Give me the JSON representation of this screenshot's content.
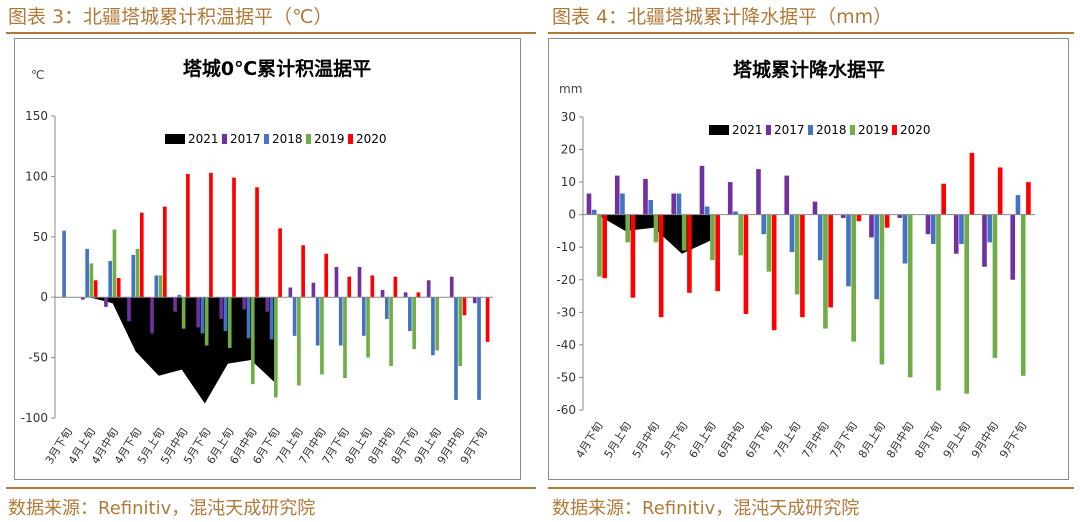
{
  "left_panel": {
    "caption": "图表 3：北疆塔城累计积温据平（℃）",
    "source": "数据来源：Refinitiv，混沌天成研究院"
  },
  "right_panel": {
    "caption": "图表 4：北疆塔城累计降水据平（mm）",
    "source": "数据来源：Refinitiv，混沌天成研究院"
  },
  "colors": {
    "2021": "#000000",
    "2017": "#7030a0",
    "2018": "#4472c4",
    "2019": "#70ad47",
    "2020": "#ff0000",
    "caption": "#b07a38"
  },
  "chart_data": [
    {
      "type": "bar",
      "title": "塔城0℃累计积温据平",
      "ylabel": "℃",
      "ylim": [
        -100,
        150
      ],
      "yticks": [
        -100,
        -50,
        0,
        50,
        100,
        150
      ],
      "legend_position": "top-center",
      "grid": false,
      "categories": [
        "3月下旬",
        "4月上旬",
        "4月中旬",
        "4月下旬",
        "5月上旬",
        "5月中旬",
        "5月下旬",
        "6月上旬",
        "6月中旬",
        "6月下旬",
        "7月上旬",
        "7月中旬",
        "7月下旬",
        "8月上旬",
        "8月中旬",
        "8月下旬",
        "9月上旬",
        "9月中旬",
        "9月下旬"
      ],
      "series": [
        {
          "name": "2021",
          "type": "area",
          "values": [
            0,
            0,
            -5,
            -45,
            -65,
            -60,
            -88,
            -55,
            -52,
            -70,
            null,
            null,
            null,
            null,
            null,
            null,
            null,
            null,
            null
          ]
        },
        {
          "name": "2017",
          "values": [
            0,
            -2,
            -8,
            -20,
            -30,
            -12,
            -25,
            -18,
            -10,
            -12,
            8,
            12,
            25,
            25,
            6,
            4,
            14,
            17,
            -5
          ]
        },
        {
          "name": "2018",
          "values": [
            55,
            40,
            30,
            35,
            18,
            2,
            -30,
            -28,
            -34,
            -35,
            -32,
            -40,
            -40,
            -32,
            -18,
            -28,
            -48,
            -85,
            -85
          ]
        },
        {
          "name": "2019",
          "values": [
            0,
            28,
            56,
            40,
            18,
            -26,
            -40,
            -42,
            -72,
            -83,
            -73,
            -64,
            -67,
            -50,
            -57,
            -43,
            -44,
            -57,
            0
          ]
        },
        {
          "name": "2020",
          "values": [
            0,
            14,
            16,
            70,
            75,
            102,
            103,
            99,
            91,
            57,
            43,
            36,
            17,
            18,
            17,
            4,
            0,
            -15,
            -37
          ]
        }
      ]
    },
    {
      "type": "bar",
      "title": "塔城累计降水据平",
      "ylabel": "mm",
      "ylim": [
        -60,
        30
      ],
      "yticks": [
        -60,
        -50,
        -40,
        -30,
        -20,
        -10,
        0,
        10,
        20,
        30
      ],
      "legend_position": "top-center",
      "grid": false,
      "categories": [
        "4月下旬",
        "5月上旬",
        "5月中旬",
        "5月下旬",
        "6月上旬",
        "6月中旬",
        "6月下旬",
        "7月上旬",
        "7月中旬",
        "7月下旬",
        "8月上旬",
        "8月中旬",
        "8月下旬",
        "9月上旬",
        "9月中旬",
        "9月下旬"
      ],
      "series": [
        {
          "name": "2021",
          "type": "area",
          "values": [
            0,
            -5,
            -4,
            -12,
            -8,
            null,
            null,
            null,
            null,
            null,
            null,
            null,
            null,
            null,
            null,
            null
          ]
        },
        {
          "name": "2017",
          "values": [
            6.5,
            12,
            11,
            6.5,
            15,
            10,
            14,
            12,
            4,
            -1,
            -7,
            -1,
            -6,
            -12,
            -16,
            -20
          ]
        },
        {
          "name": "2018",
          "values": [
            1.5,
            6.5,
            4.5,
            6.5,
            2.5,
            1,
            -6,
            -11.5,
            -14,
            -22,
            -26,
            -15,
            -9,
            -9,
            -8.5,
            6
          ]
        },
        {
          "name": "2019",
          "values": [
            -19,
            -8.5,
            -8.5,
            -11,
            -14,
            -12.5,
            -17.5,
            -24.5,
            -35,
            -39,
            -46,
            -50,
            -54,
            -55,
            -44,
            -49.5
          ]
        },
        {
          "name": "2020",
          "values": [
            -19.5,
            -25.5,
            -31.5,
            -24,
            -23.5,
            -30.5,
            -35.5,
            -31.5,
            -28.5,
            -2,
            -4,
            0,
            9.5,
            19,
            14.5,
            10
          ]
        }
      ]
    }
  ]
}
